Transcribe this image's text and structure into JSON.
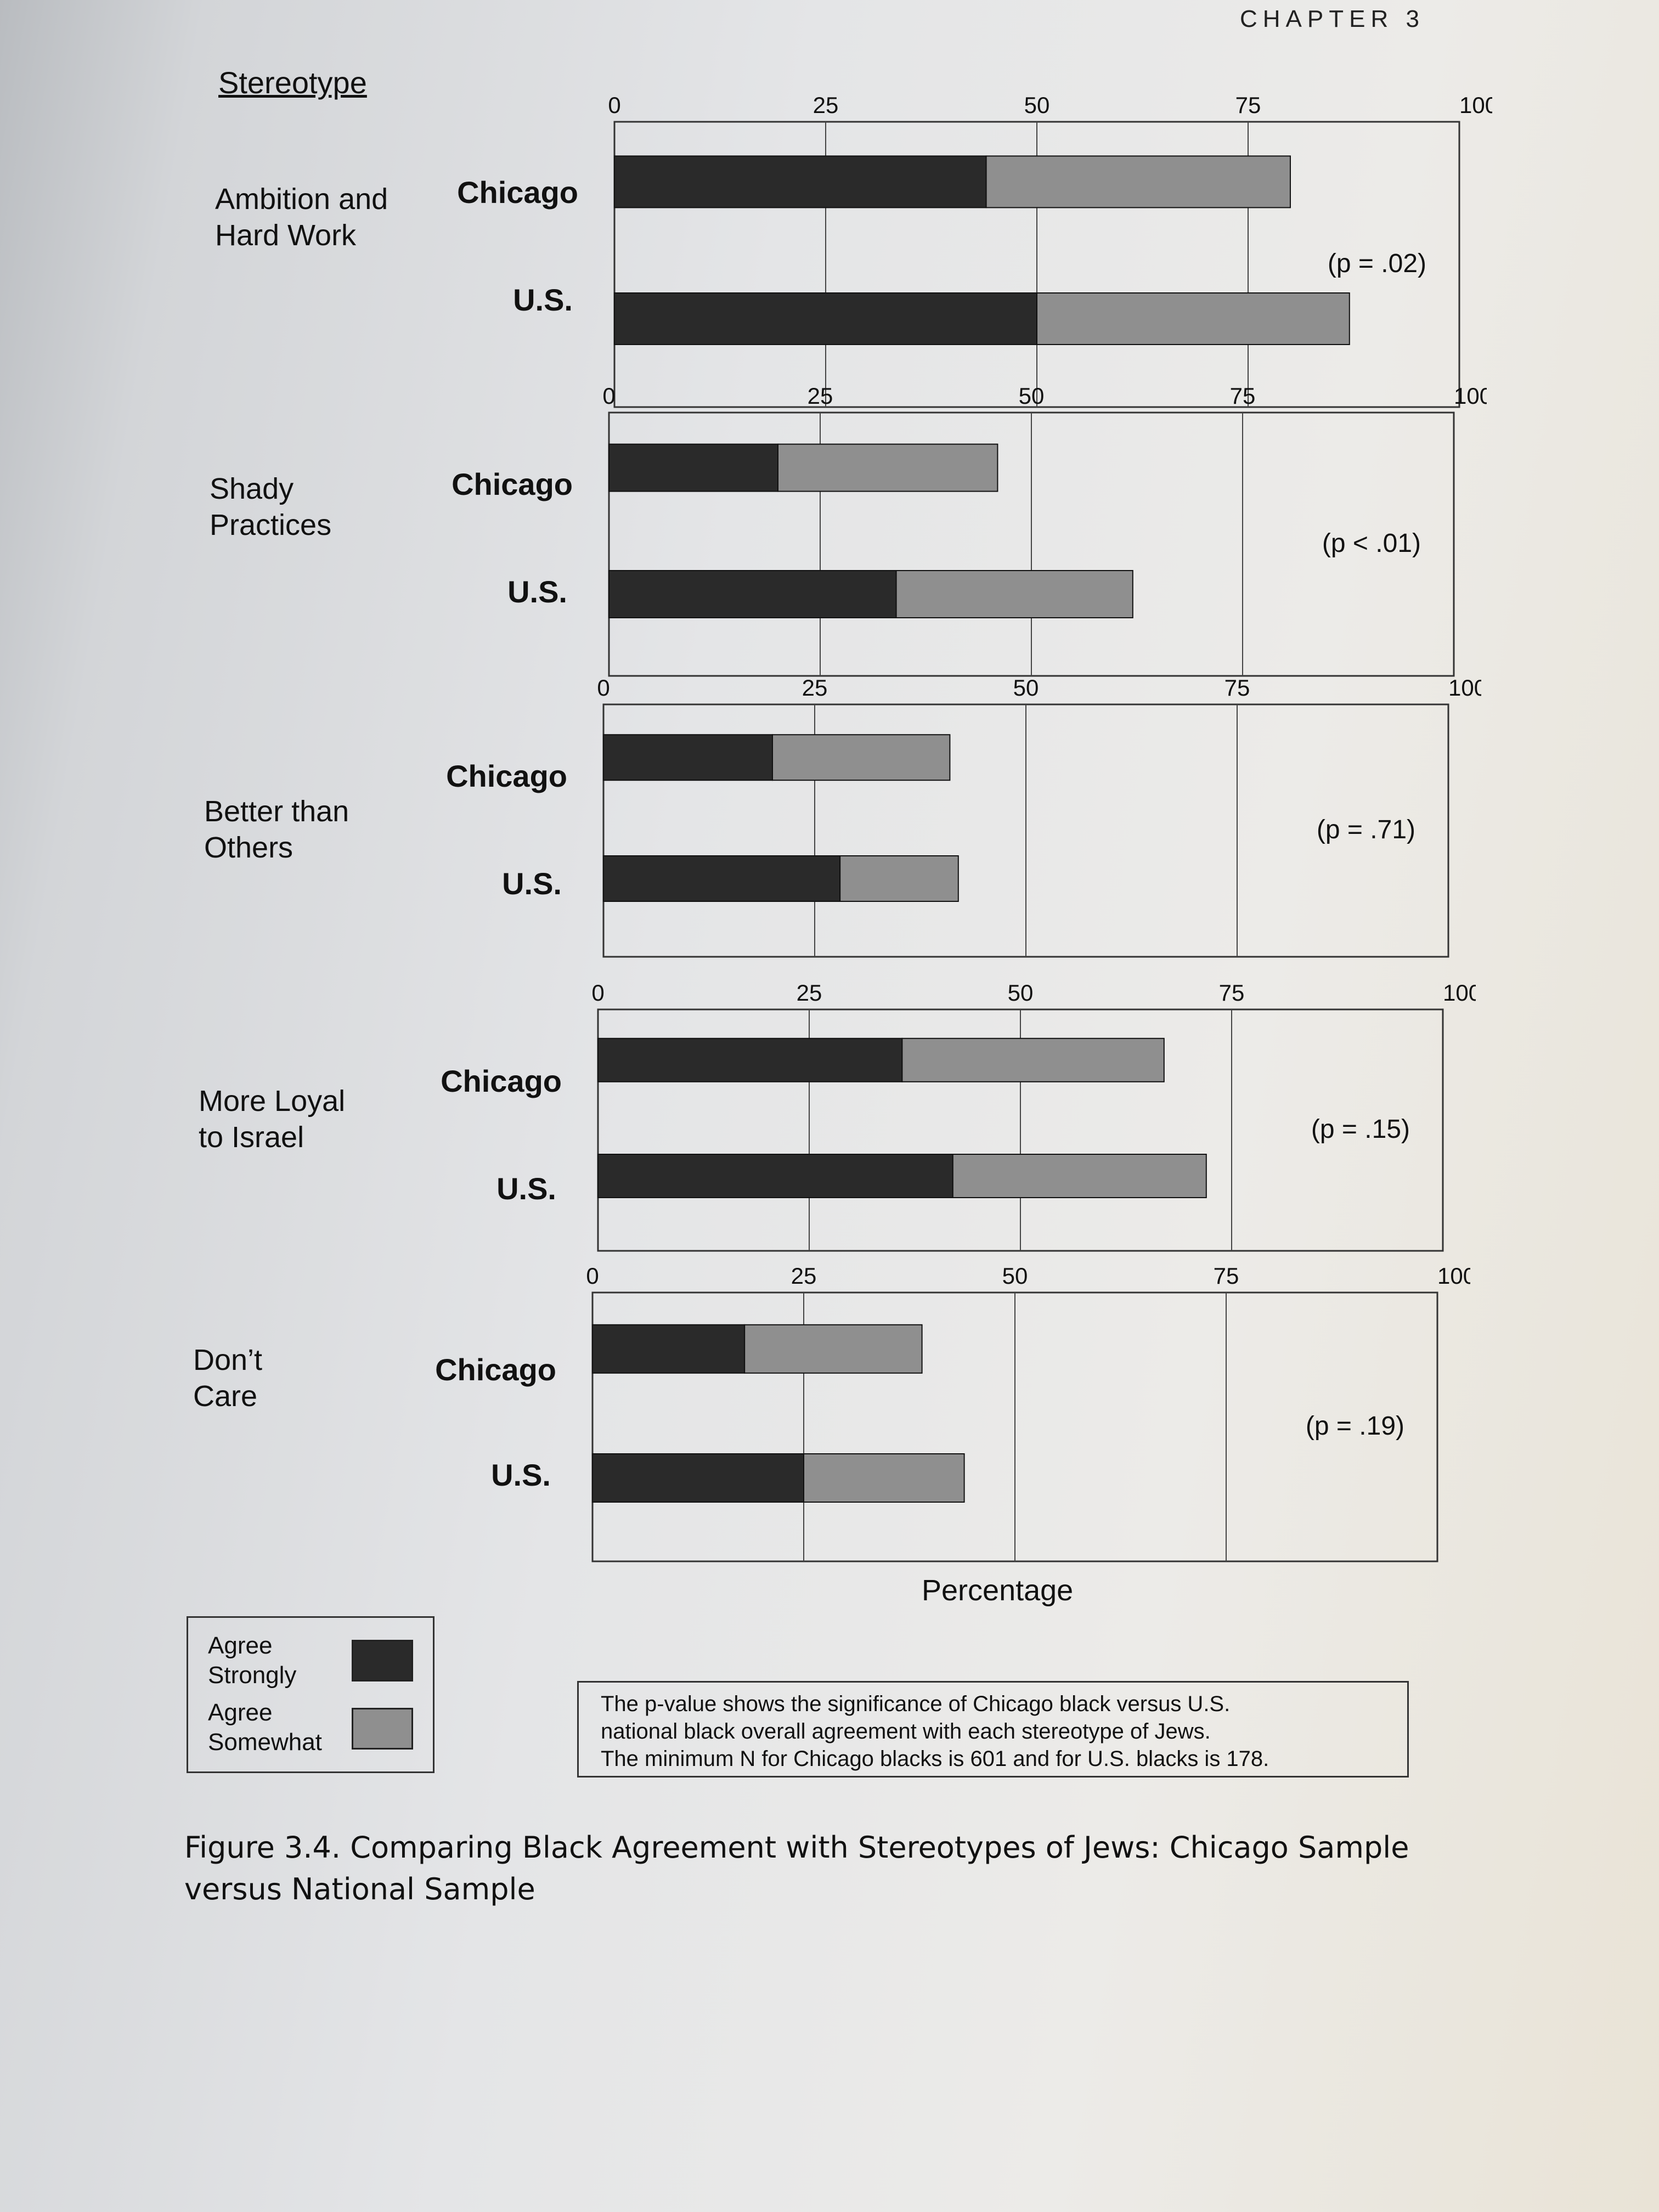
{
  "header": {
    "running_head": "CHAPTER 3"
  },
  "figure": {
    "stereotype_heading": "Stereotype",
    "axis_title": "Percentage",
    "caption": "Figure 3.4. Comparing Black Agreement with Stereotypes of Jews: Chicago Sample versus National Sample",
    "note_line1": "The p-value shows the significance of Chicago black versus U.S.",
    "note_line2": "national black overall agreement with each stereotype of Jews.",
    "note_line3": "The minimum N for Chicago blacks is 601 and for U.S. blacks is 178.",
    "legend": {
      "strong": "Agree Strongly",
      "somewhat": "Agree Somewhat"
    }
  },
  "chart_data": {
    "type": "bar",
    "orientation": "horizontal",
    "stacked": true,
    "xlabel": "Percentage",
    "xlim": [
      0,
      100
    ],
    "xticks": [
      0,
      25,
      50,
      75,
      100
    ],
    "legend": [
      "Agree Strongly",
      "Agree Somewhat"
    ],
    "colors": {
      "agree_strongly": "#2a2a2a",
      "agree_somewhat": "#8f8f8f"
    },
    "groups": [
      {
        "stereotype": "Ambition and Hard Work",
        "p_value": "(p = .02)",
        "bars": [
          {
            "sample": "Chicago",
            "agree_strongly": 44,
            "agree_somewhat": 36
          },
          {
            "sample": "U.S.",
            "agree_strongly": 50,
            "agree_somewhat": 37
          }
        ]
      },
      {
        "stereotype": "Shady Practices",
        "p_value": "(p < .01)",
        "bars": [
          {
            "sample": "Chicago",
            "agree_strongly": 20,
            "agree_somewhat": 26
          },
          {
            "sample": "U.S.",
            "agree_strongly": 34,
            "agree_somewhat": 28
          }
        ]
      },
      {
        "stereotype": "Better than Others",
        "p_value": "(p = .71)",
        "bars": [
          {
            "sample": "Chicago",
            "agree_strongly": 20,
            "agree_somewhat": 21
          },
          {
            "sample": "U.S.",
            "agree_strongly": 28,
            "agree_somewhat": 14
          }
        ]
      },
      {
        "stereotype": "More Loyal to Israel",
        "p_value": "(p = .15)",
        "bars": [
          {
            "sample": "Chicago",
            "agree_strongly": 36,
            "agree_somewhat": 31
          },
          {
            "sample": "U.S.",
            "agree_strongly": 42,
            "agree_somewhat": 30
          }
        ]
      },
      {
        "stereotype": "Don’t Care",
        "p_value": "(p = .19)",
        "bars": [
          {
            "sample": "Chicago",
            "agree_strongly": 18,
            "agree_somewhat": 21
          },
          {
            "sample": "U.S.",
            "agree_strongly": 25,
            "agree_somewhat": 19
          }
        ]
      }
    ]
  }
}
